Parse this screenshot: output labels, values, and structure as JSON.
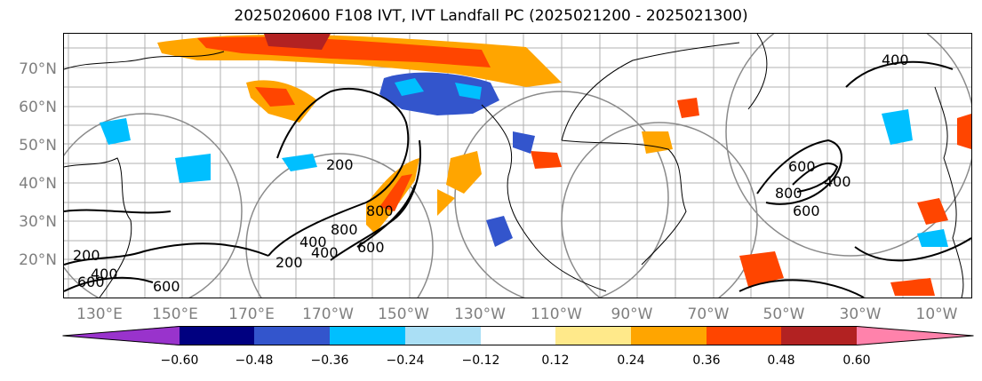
{
  "title": "2025020600 F108 IVT, IVT Landfall PC (2025021200 - 2025021300)",
  "latitude_labels": [
    "70°N",
    "60°N",
    "50°N",
    "40°N",
    "30°N",
    "20°N"
  ],
  "longitude_labels": [
    "130°E",
    "150°E",
    "170°E",
    "170°W",
    "150°W",
    "130°W",
    "110°W",
    "90°W",
    "70°W",
    "50°W",
    "30°W",
    "10°W"
  ],
  "contour_labels": [
    "200",
    "400",
    "600",
    "800",
    "200",
    "400",
    "800",
    "200",
    "400",
    "600",
    "800",
    "400",
    "600",
    "400",
    "600",
    "600"
  ],
  "colorbar": {
    "ticks": [
      "−0.60",
      "−0.48",
      "−0.36",
      "−0.24",
      "−0.12",
      "0.12",
      "0.24",
      "0.36",
      "0.48",
      "0.60"
    ],
    "colors": [
      "#9933cc",
      "#000080",
      "#3355cc",
      "#00bfff",
      "#aadff5",
      "#ffffff",
      "#ffe98a",
      "#ffa500",
      "#ff4500",
      "#b22222",
      "#ff82ab",
      "#ff82ab"
    ]
  }
}
